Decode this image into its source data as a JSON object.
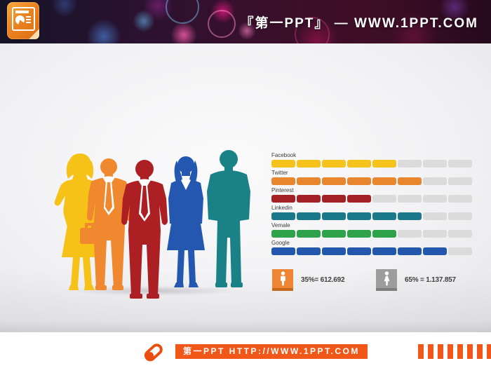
{
  "header": {
    "title": "『第一PPT』 — WWW.1PPT.COM",
    "logo": "powerpoint-document-icon"
  },
  "slide": {
    "description": "Five standing business-people silhouettes beside a social media statistics chart",
    "figures": [
      {
        "name": "businesswoman-yellow",
        "color": "#F7C217"
      },
      {
        "name": "businessman-orange",
        "color": "#F0882F"
      },
      {
        "name": "businessman-red",
        "color": "#AC1F23"
      },
      {
        "name": "businesswoman-blue",
        "color": "#2458B0"
      },
      {
        "name": "businessman-teal",
        "color": "#1A8287"
      }
    ]
  },
  "chart_data": {
    "type": "bar",
    "orientation": "horizontal",
    "segments_per_row": 8,
    "categories": [
      "Facebook",
      "Twitter",
      "Pinterest",
      "Linkedin",
      "Vemale",
      "Google"
    ],
    "values": [
      5,
      6,
      4,
      6,
      5,
      7
    ],
    "values_fraction_of_8": [
      "5/8",
      "6/8",
      "4/8",
      "6/8",
      "5/8",
      "7/8"
    ],
    "colors": [
      "#F6C31C",
      "#E9872F",
      "#A32125",
      "#19798A",
      "#2FA34C",
      "#2357AE"
    ],
    "empty_color": "#DBDBDB",
    "legend": [
      {
        "label": "35%= 612.692",
        "icon": "male-icon",
        "color": "#EE8534"
      },
      {
        "label": "65% = 1.137.857",
        "icon": "female-icon",
        "color": "#9D9D9D"
      }
    ]
  },
  "footer": {
    "banner": "第一PPT HTTP://WWW.1PPT.COM"
  }
}
